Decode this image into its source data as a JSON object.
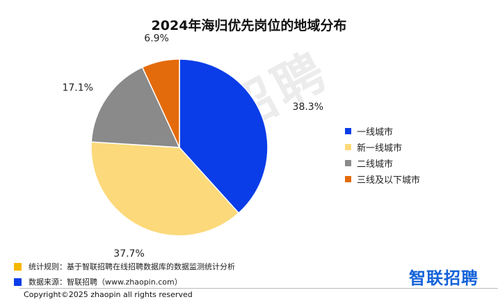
{
  "chart_data": {
    "type": "pie",
    "title": "2024年海归优先岗位的地域分布",
    "categories": [
      "一线城市",
      "新一线城市",
      "二线城市",
      "三线及以下城市"
    ],
    "values": [
      38.3,
      37.7,
      17.1,
      6.9
    ],
    "value_labels": [
      "38.3%",
      "37.7%",
      "17.1%",
      "6.9%"
    ],
    "colors": [
      "#0a3de8",
      "#fcd97a",
      "#8a8a8a",
      "#e46b0c"
    ],
    "legend_position": "right"
  },
  "watermark": "智联招聘",
  "notes": [
    {
      "text": "统计规则：基于智联招聘在线招聘数据库的数据监测统计分析",
      "color": "#f5b800"
    },
    {
      "text": "数据来源：智联招聘（www.zhaopin.com）",
      "color": "#0a3de8"
    }
  ],
  "logo": "智联招聘",
  "copyright": "Copyright©2025 zhaopin all rights reserved"
}
